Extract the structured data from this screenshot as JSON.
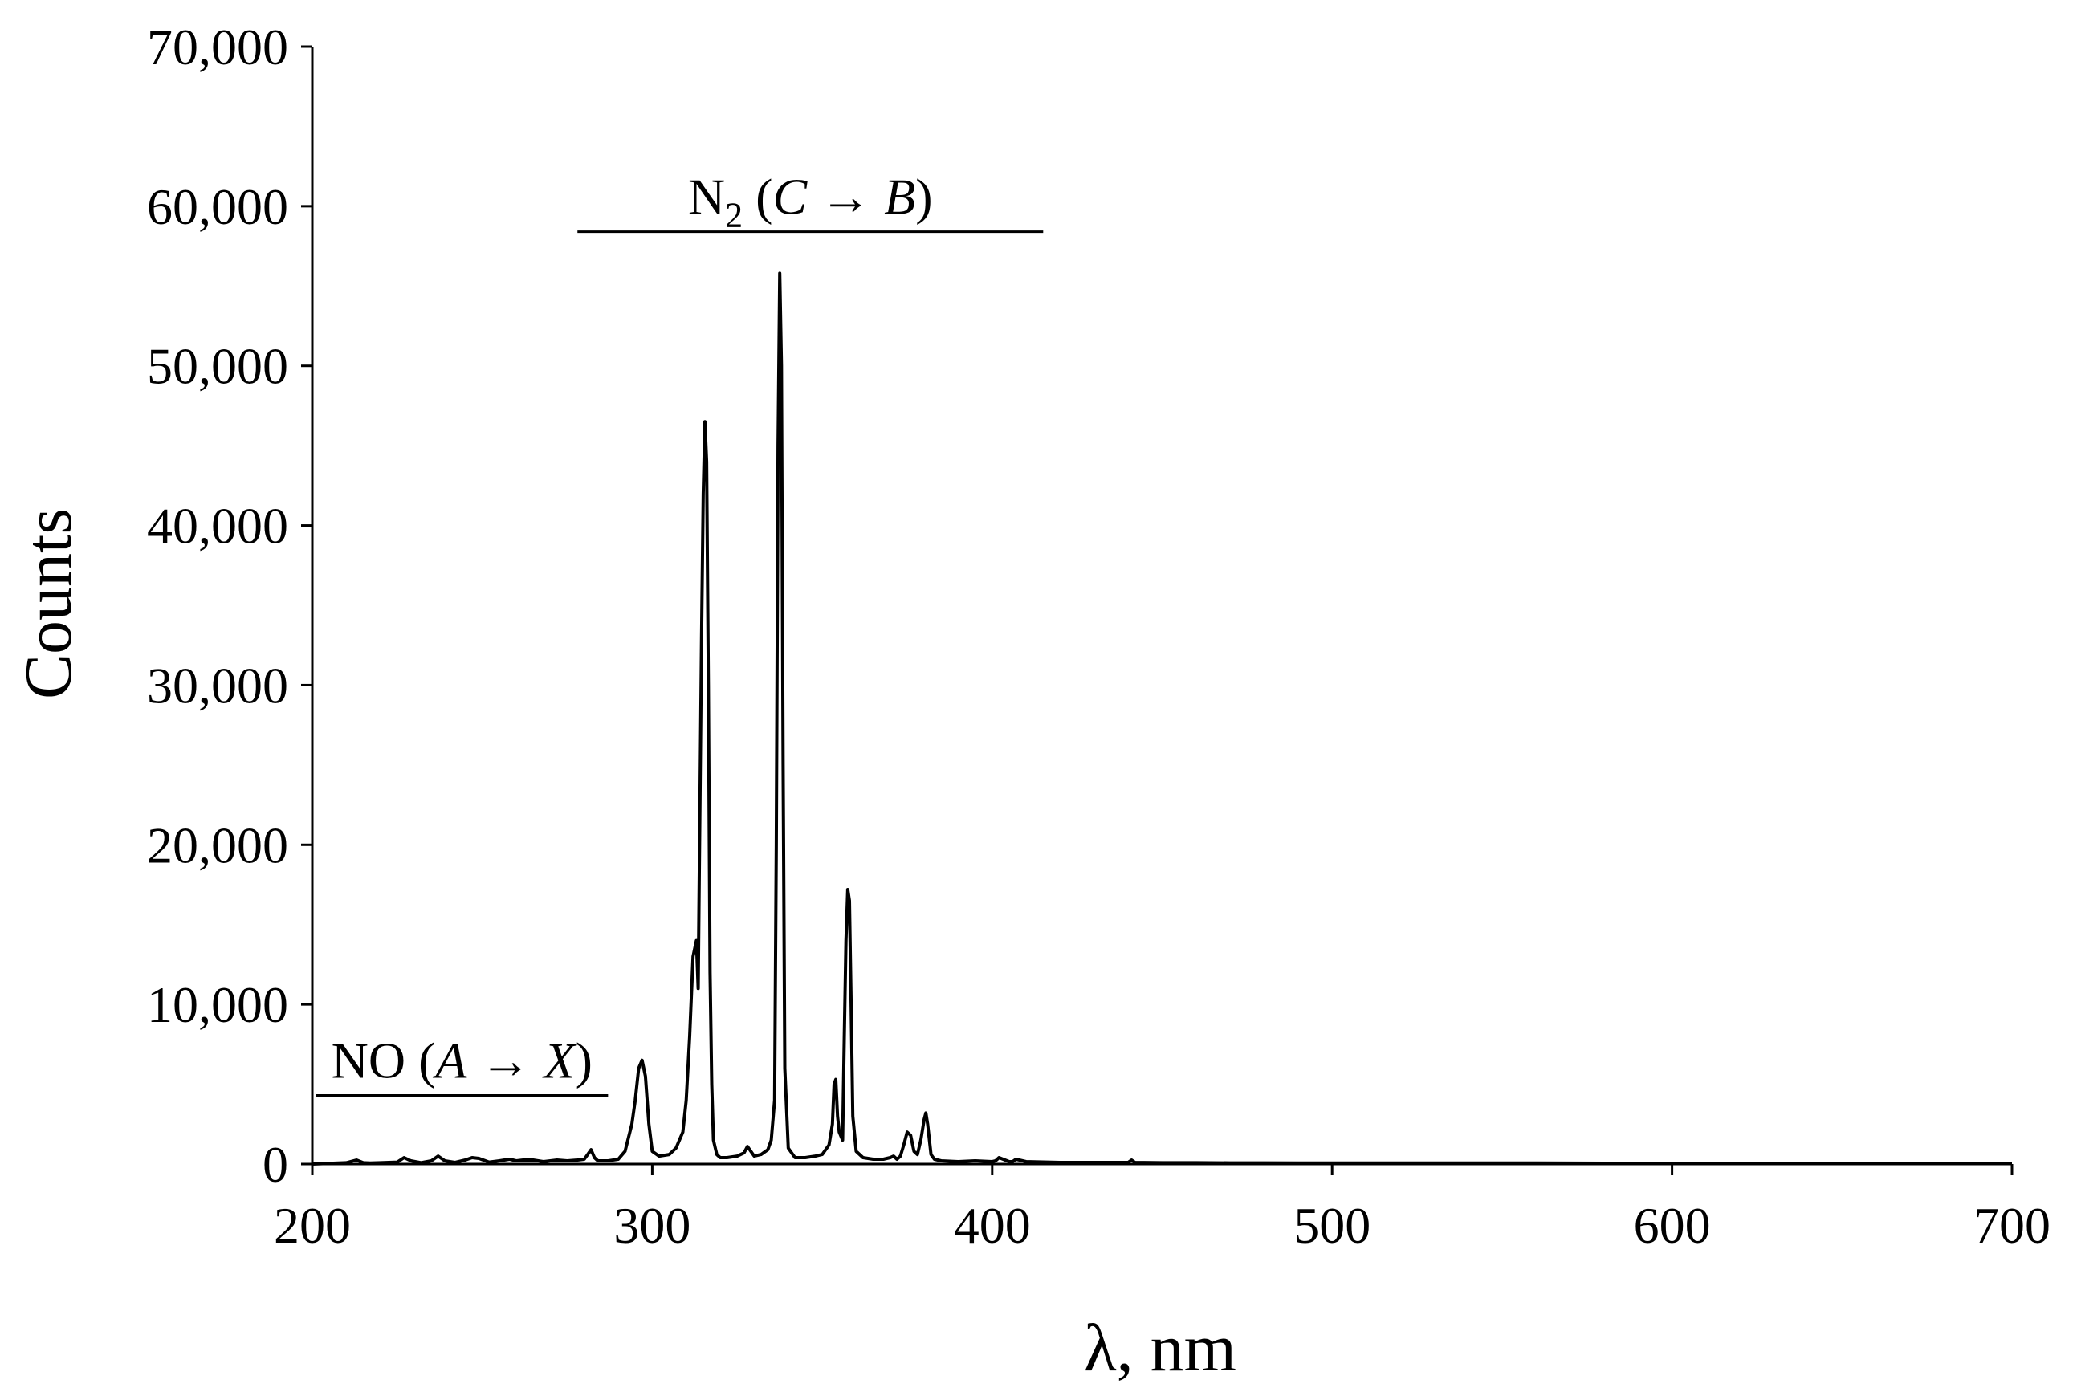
{
  "chart_data": {
    "type": "line",
    "title": "",
    "xlabel": "λ, nm",
    "ylabel": "Counts",
    "xlim": [
      200,
      700
    ],
    "ylim": [
      0,
      70000
    ],
    "xticks": [
      200,
      300,
      400,
      500,
      600,
      700
    ],
    "yticks": [
      0,
      10000,
      20000,
      30000,
      40000,
      50000,
      60000,
      70000
    ],
    "xtick_labels": [
      "200",
      "300",
      "400",
      "500",
      "600",
      "700"
    ],
    "ytick_labels": [
      "0",
      "10,000",
      "20,000",
      "30,000",
      "40,000",
      "50,000",
      "60,000",
      "70,000"
    ],
    "grid": false,
    "legend": "none",
    "line_color": "#000000",
    "annotations": [
      {
        "id": "no",
        "text_parts": [
          "NO (",
          "A",
          " → ",
          "X",
          ")"
        ],
        "italic": [
          false,
          true,
          false,
          true,
          false
        ],
        "x_range": [
          201,
          287
        ],
        "y_line": 4300
      },
      {
        "id": "n2",
        "base": "N",
        "sub": "2",
        "text_parts": [
          " (",
          "C",
          " → ",
          "B",
          ")"
        ],
        "italic": [
          false,
          true,
          false,
          true,
          false
        ],
        "x_range": [
          278,
          415
        ],
        "y_line": 58400
      }
    ],
    "series": [
      {
        "x": [
          200,
          210,
          213,
          215,
          217,
          220,
          225,
          227,
          229,
          232,
          235,
          237,
          239,
          242,
          245,
          247,
          249,
          252,
          255,
          258,
          260,
          262,
          265,
          268,
          270,
          272,
          275,
          278,
          280,
          281,
          282,
          283,
          284,
          287,
          290,
          292,
          294,
          295,
          296,
          297,
          298,
          299,
          300,
          302,
          305,
          307,
          309,
          310,
          311,
          312,
          313,
          313.5,
          314,
          314.5,
          315,
          315.5,
          316,
          316.5,
          317,
          317.5,
          318,
          319,
          320,
          322,
          325,
          327,
          328,
          329,
          330,
          332,
          334,
          335,
          336,
          336.5,
          337,
          337.5,
          338,
          338.5,
          339,
          340,
          342,
          345,
          348,
          350,
          352,
          353,
          353.5,
          354,
          354.5,
          355,
          356,
          356.5,
          357,
          357.5,
          358,
          358.5,
          359,
          360,
          362,
          365,
          368,
          370,
          371,
          372,
          373,
          374,
          375,
          376,
          377,
          378,
          379,
          380,
          380.5,
          381,
          382,
          383,
          385,
          390,
          395,
          400,
          401,
          402,
          405,
          406,
          407,
          410,
          420,
          430,
          440,
          441,
          442,
          450,
          460,
          470,
          480,
          490,
          500,
          520,
          540,
          560,
          580,
          600,
          620,
          640,
          660,
          680,
          700
        ],
        "y": [
          0,
          80,
          250,
          80,
          60,
          80,
          120,
          400,
          200,
          80,
          200,
          500,
          200,
          100,
          250,
          400,
          350,
          120,
          200,
          300,
          200,
          250,
          250,
          150,
          200,
          250,
          200,
          250,
          300,
          600,
          900,
          400,
          200,
          200,
          300,
          800,
          2500,
          4000,
          6000,
          6500,
          5500,
          2500,
          800,
          500,
          600,
          1000,
          2000,
          4000,
          8000,
          13000,
          14000,
          11000,
          22000,
          33000,
          42000,
          46500,
          44000,
          30000,
          12000,
          5000,
          1500,
          600,
          400,
          400,
          500,
          700,
          1100,
          800,
          500,
          600,
          900,
          1500,
          4000,
          20000,
          45000,
          55800,
          50000,
          25000,
          6000,
          1000,
          400,
          400,
          500,
          600,
          1200,
          2500,
          5000,
          5300,
          3000,
          2000,
          1500,
          8000,
          14000,
          17200,
          16500,
          10000,
          3000,
          800,
          400,
          300,
          300,
          400,
          500,
          300,
          500,
          1200,
          2000,
          1800,
          800,
          600,
          1500,
          2800,
          3200,
          2500,
          600,
          300,
          200,
          150,
          200,
          150,
          200,
          400,
          150,
          150,
          300,
          150,
          100,
          100,
          100,
          250,
          100,
          80,
          80,
          70,
          70,
          60,
          60,
          60,
          60,
          60,
          50,
          50,
          50,
          50,
          50,
          50,
          50
        ]
      }
    ]
  }
}
